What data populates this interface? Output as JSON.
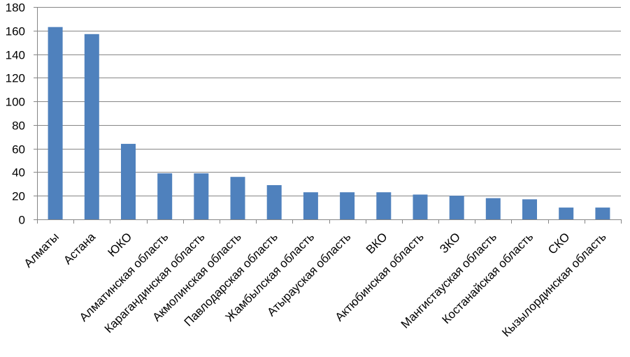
{
  "chart_data": {
    "type": "bar",
    "title": "",
    "xlabel": "",
    "ylabel": "",
    "categories": [
      "Алматы",
      "Астана",
      "ЮКО",
      "Алматинская область",
      "Карагандинская  область",
      "Акмолинская область",
      "Павлодарская область",
      "Жамбылская  область",
      "Атырауская область",
      "ВКО",
      "Актюбинская  область",
      "ЗКО",
      "Мангистауская  область",
      "Костанайская  область",
      "СКО",
      "Кызылординская  область"
    ],
    "values": [
      163,
      157,
      64,
      39,
      39,
      36,
      29,
      23,
      23,
      23,
      21,
      20,
      18,
      17,
      10,
      10
    ],
    "ylim": [
      0,
      180
    ],
    "yticks": [
      0,
      20,
      40,
      60,
      80,
      100,
      120,
      140,
      160,
      180
    ],
    "grid": true,
    "legend": "none",
    "bar_color": "#4F81BD"
  }
}
